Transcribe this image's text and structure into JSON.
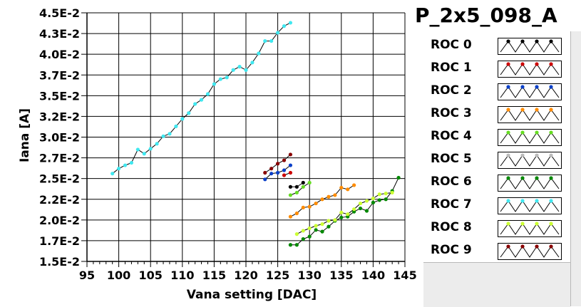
{
  "chart_data": {
    "type": "line",
    "title": "P_2x5_098_A",
    "xlabel": "Vana setting [DAC]",
    "ylabel": "Iana [A]",
    "xlim": [
      95,
      145
    ],
    "ylim": [
      0.015,
      0.045
    ],
    "x_ticks": [
      95,
      100,
      105,
      110,
      115,
      120,
      125,
      130,
      135,
      140,
      145
    ],
    "x_tick_labels": [
      "95",
      "100",
      "105",
      "110",
      "115",
      "120",
      "125",
      "130",
      "135",
      "140",
      "145"
    ],
    "y_ticks": [
      0.015,
      0.0175,
      0.02,
      0.0225,
      0.025,
      0.0275,
      0.03,
      0.0325,
      0.035,
      0.0375,
      0.04,
      0.0425,
      0.045
    ],
    "y_tick_labels": [
      "1.5E-2",
      "1.7E-2",
      "2.0E-2",
      "2.2E-2",
      "2.5E-2",
      "2.7E-2",
      "3.0E-2",
      "3.2E-2",
      "3.5E-2",
      "3.7E-2",
      "4.0E-2",
      "4.3E-2",
      "4.5E-2"
    ],
    "grid": true,
    "legend_position": "right",
    "series": [
      {
        "name": "ROC 0",
        "color": "#000000",
        "x": [
          127,
          128,
          129
        ],
        "y": [
          0.024,
          0.024,
          0.0245
        ]
      },
      {
        "name": "ROC 1",
        "color": "#cc0000",
        "x": [
          126,
          127
        ],
        "y": [
          0.0254,
          0.0257
        ]
      },
      {
        "name": "ROC 2",
        "color": "#0a3fc8",
        "x": [
          123,
          124,
          125,
          126,
          127
        ],
        "y": [
          0.0249,
          0.0256,
          0.0257,
          0.026,
          0.0266
        ]
      },
      {
        "name": "ROC 3",
        "color": "#ff8c00",
        "x": [
          127,
          128,
          129,
          130,
          131,
          132,
          133,
          134,
          135,
          136,
          137
        ],
        "y": [
          0.0204,
          0.0208,
          0.0215,
          0.0216,
          0.022,
          0.0225,
          0.0228,
          0.023,
          0.0239,
          0.0237,
          0.0242
        ]
      },
      {
        "name": "ROC 4",
        "color": "#66dd22",
        "x": [
          127,
          128,
          129,
          130
        ],
        "y": [
          0.023,
          0.0233,
          0.024,
          0.0245
        ]
      },
      {
        "name": "ROC 5",
        "color": "#bbbbbb",
        "x": [],
        "y": []
      },
      {
        "name": "ROC 6",
        "color": "#008800",
        "x": [
          127,
          128,
          129,
          130,
          131,
          132,
          133,
          134,
          135,
          136,
          137,
          138,
          139,
          140,
          141,
          142,
          143,
          144
        ],
        "y": [
          0.017,
          0.017,
          0.0177,
          0.018,
          0.0188,
          0.0186,
          0.0192,
          0.0199,
          0.0203,
          0.0204,
          0.021,
          0.0214,
          0.0211,
          0.0221,
          0.0224,
          0.0225,
          0.0235,
          0.0251
        ]
      },
      {
        "name": "ROC 7",
        "color": "#40e8f0",
        "x": [
          99,
          100,
          101,
          102,
          103,
          104,
          105,
          106,
          107,
          108,
          109,
          110,
          111,
          112,
          113,
          114,
          115,
          116,
          117,
          118,
          119,
          120,
          121,
          122,
          123,
          124,
          125,
          126,
          127
        ],
        "y": [
          0.0256,
          0.0262,
          0.0266,
          0.0269,
          0.0285,
          0.028,
          0.0286,
          0.0292,
          0.0301,
          0.0304,
          0.0313,
          0.0322,
          0.0329,
          0.034,
          0.0345,
          0.0352,
          0.0364,
          0.037,
          0.0372,
          0.0381,
          0.0385,
          0.0381,
          0.039,
          0.0401,
          0.0416,
          0.0416,
          0.0426,
          0.0434,
          0.0438
        ]
      },
      {
        "name": "ROC 8",
        "color": "#ccff33",
        "x": [
          128,
          129,
          130,
          131,
          132,
          133,
          134,
          135,
          136,
          137,
          138,
          139,
          140,
          141,
          142,
          143
        ],
        "y": [
          0.0183,
          0.0187,
          0.019,
          0.0193,
          0.0195,
          0.0199,
          0.02,
          0.0209,
          0.0207,
          0.0213,
          0.022,
          0.0223,
          0.0226,
          0.0231,
          0.0232,
          0.0233
        ]
      },
      {
        "name": "ROC 9",
        "color": "#880000",
        "x": [
          123,
          124,
          125,
          126,
          127
        ],
        "y": [
          0.0257,
          0.0262,
          0.0268,
          0.0272,
          0.0279
        ]
      }
    ]
  }
}
